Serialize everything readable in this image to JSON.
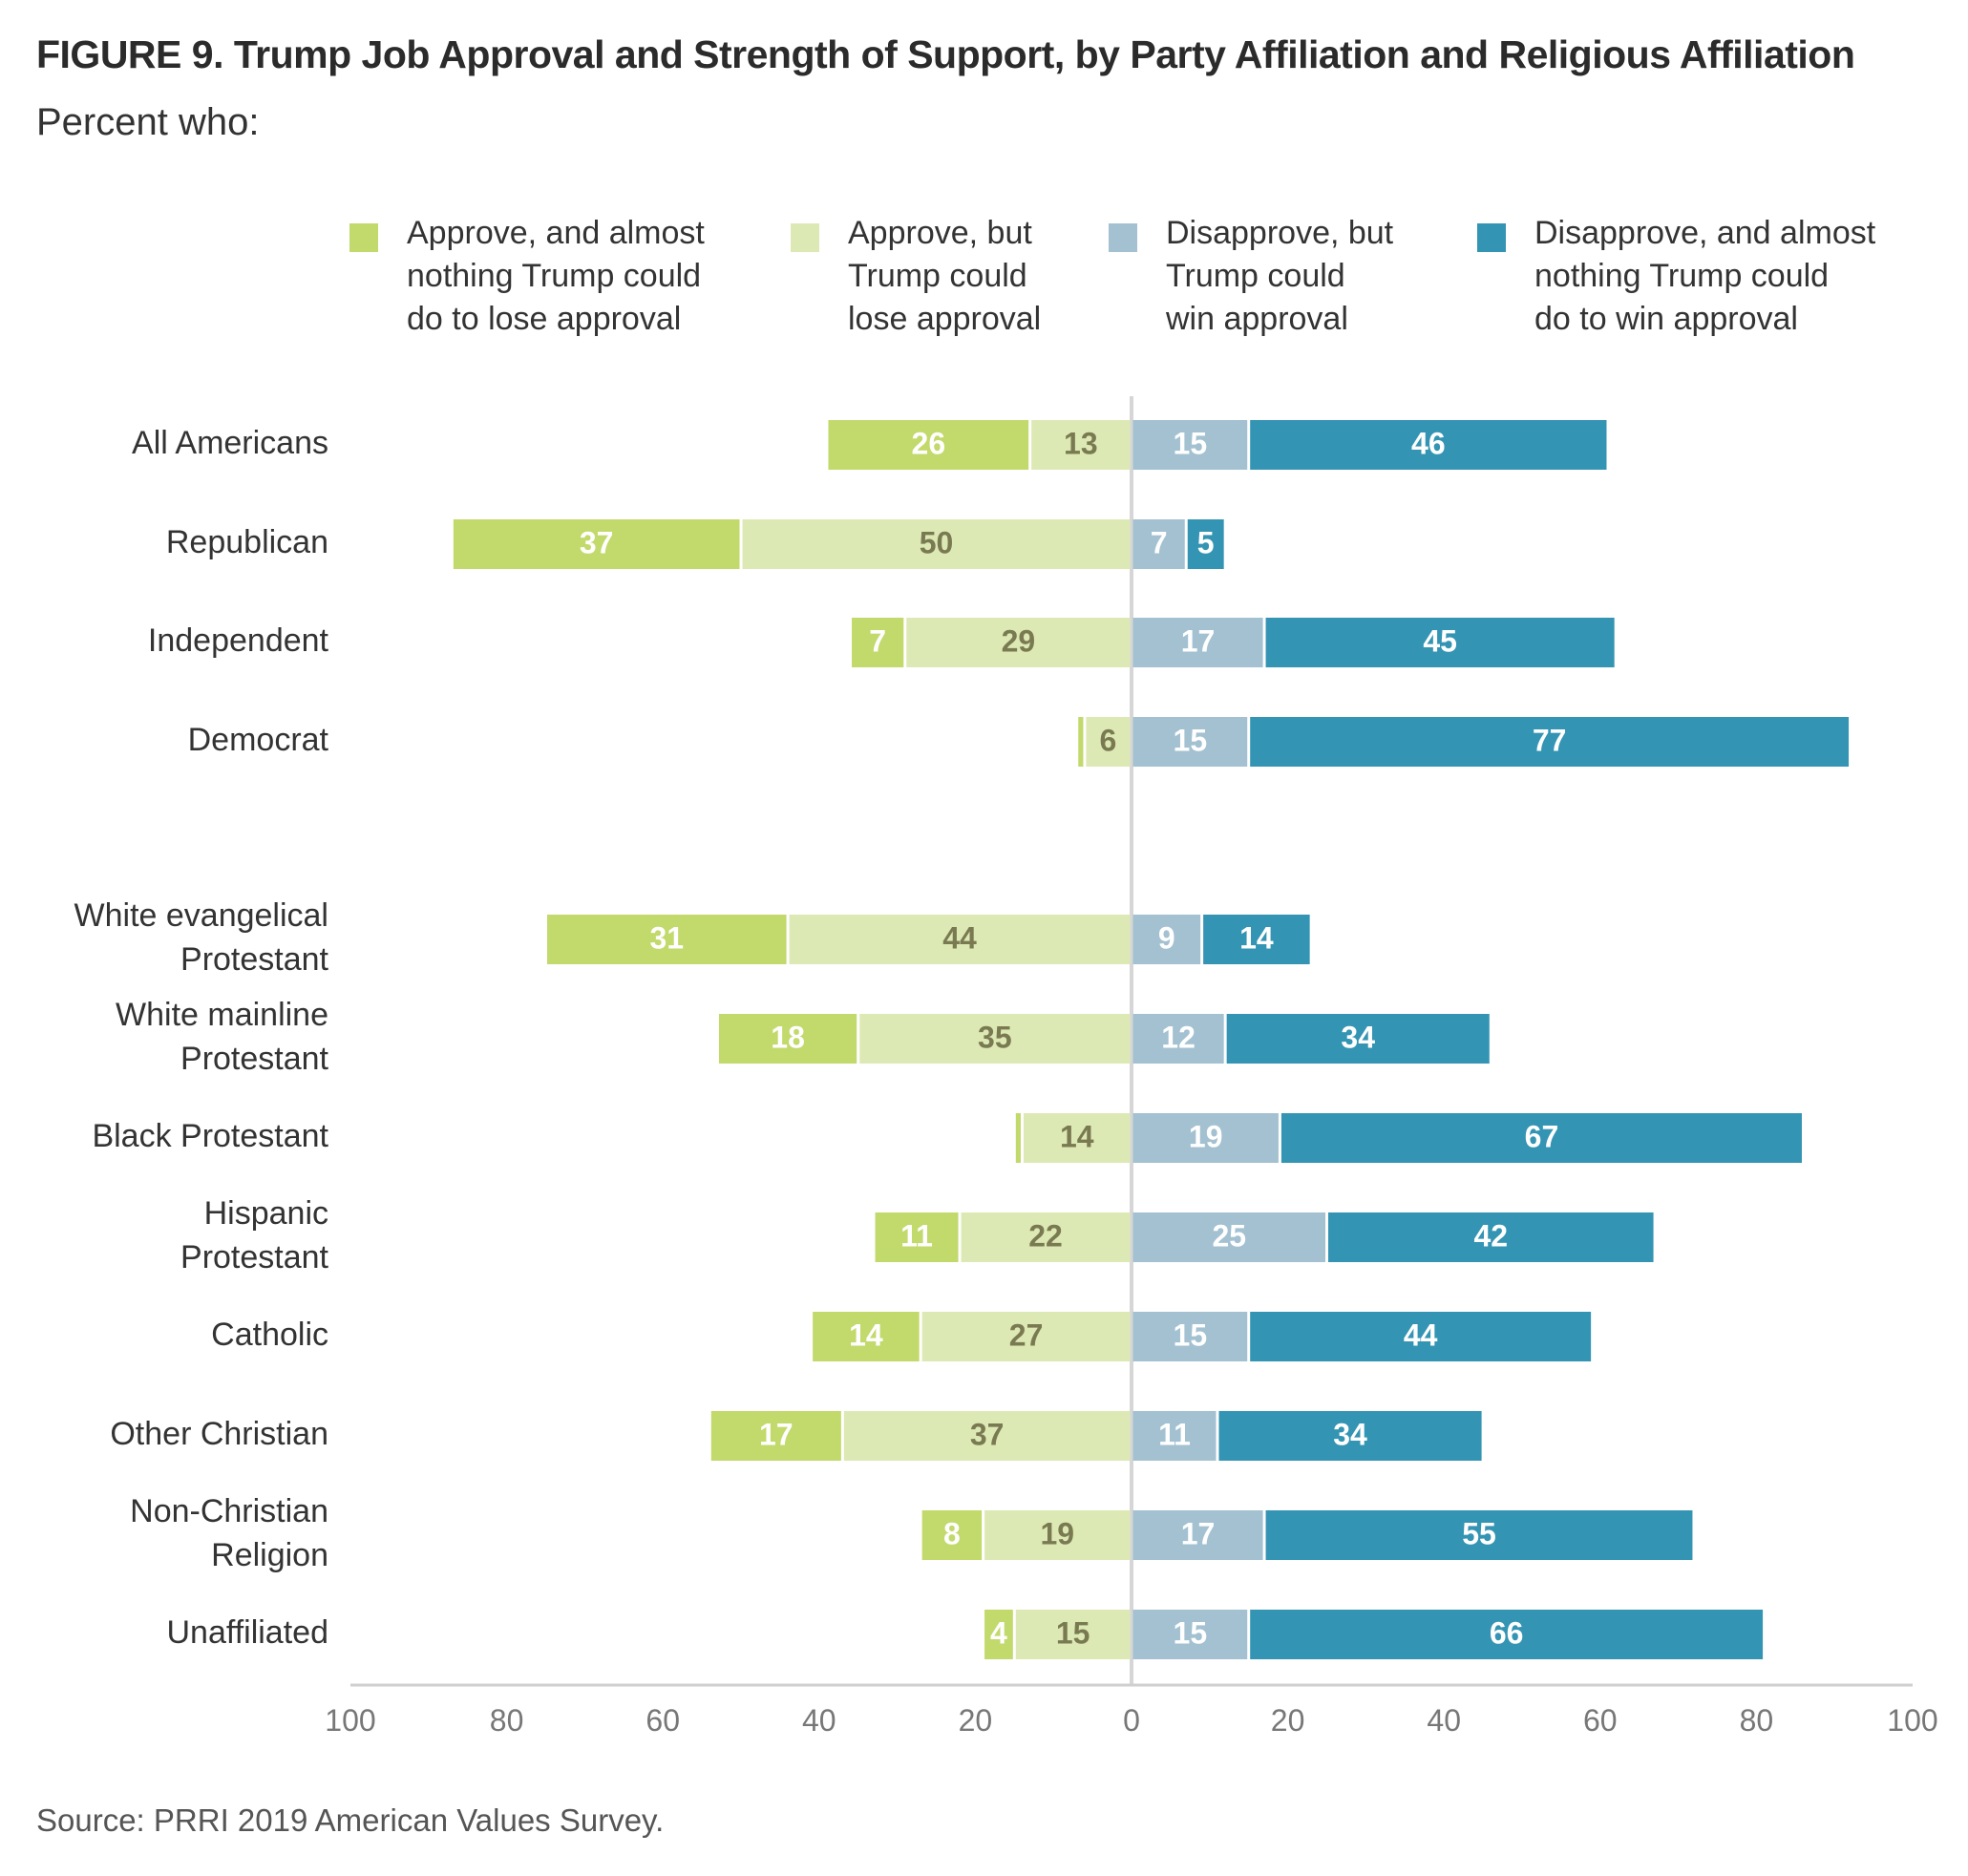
{
  "title": "FIGURE 9. Trump Job Approval and Strength of Support, by Party Affiliation and Religious Affiliation",
  "subtitle": "Percent who:",
  "source": "Source: PRRI 2019 American Values Survey.",
  "legend": [
    {
      "label": "Approve, and almost\nnothing Trump could\ndo to lose approval",
      "color": "#c2d96b"
    },
    {
      "label": "Approve, but\nTrump could\nlose approval",
      "color": "#dde9b4"
    },
    {
      "label": "Disapprove, but\nTrump could\nwin approval",
      "color": "#a3c1d1"
    },
    {
      "label": "Disapprove, and almost\nnothing Trump could\ndo to win approval",
      "color": "#3494b3"
    }
  ],
  "chart_data": {
    "type": "bar",
    "orientation": "horizontal-diverging",
    "categories": [
      "All Americans",
      "Republican",
      "Independent",
      "Democrat",
      "White evangelical\nProtestant",
      "White mainline\nProtestant",
      "Black Protestant",
      "Hispanic\nProtestant",
      "Catholic",
      "Other Christian",
      "Non-Christian\nReligion",
      "Unaffiliated"
    ],
    "groups": [
      [
        0,
        1,
        2,
        3
      ],
      [
        4,
        5,
        6,
        7,
        8,
        9,
        10,
        11
      ]
    ],
    "series": [
      {
        "name": "Approve, and almost nothing Trump could do to lose approval",
        "side": "left",
        "values": [
          26,
          37,
          7,
          1,
          31,
          18,
          1,
          11,
          14,
          17,
          8,
          4
        ],
        "labels": [
          "26",
          "37",
          "7",
          "",
          "31",
          "18",
          "",
          "11",
          "14",
          "17",
          "8",
          "4"
        ]
      },
      {
        "name": "Approve, but Trump could lose approval",
        "side": "left",
        "values": [
          13,
          50,
          29,
          6,
          44,
          35,
          14,
          22,
          27,
          37,
          19,
          15
        ],
        "labels": [
          "13",
          "50",
          "29",
          "6",
          "44",
          "35",
          "14",
          "22",
          "27",
          "37",
          "19",
          "15"
        ]
      },
      {
        "name": "Disapprove, but Trump could win approval",
        "side": "right",
        "values": [
          15,
          7,
          17,
          15,
          9,
          12,
          19,
          25,
          15,
          11,
          17,
          15
        ],
        "labels": [
          "15",
          "7",
          "17",
          "15",
          "9",
          "12",
          "19",
          "25",
          "15",
          "11",
          "17",
          "15"
        ]
      },
      {
        "name": "Disapprove, and almost nothing Trump could do to win approval",
        "side": "right",
        "values": [
          46,
          5,
          45,
          77,
          14,
          34,
          67,
          42,
          44,
          34,
          55,
          66
        ],
        "labels": [
          "46",
          "5",
          "45",
          "77",
          "14",
          "34",
          "67",
          "42",
          "44",
          "34",
          "55",
          "66"
        ]
      }
    ],
    "xlim": [
      -100,
      100
    ],
    "xticks": [
      "100",
      "80",
      "60",
      "40",
      "20",
      "0",
      "20",
      "40",
      "60",
      "80",
      "100"
    ],
    "xlabel": "",
    "ylabel": "",
    "grid": false,
    "legend_position": "top"
  }
}
